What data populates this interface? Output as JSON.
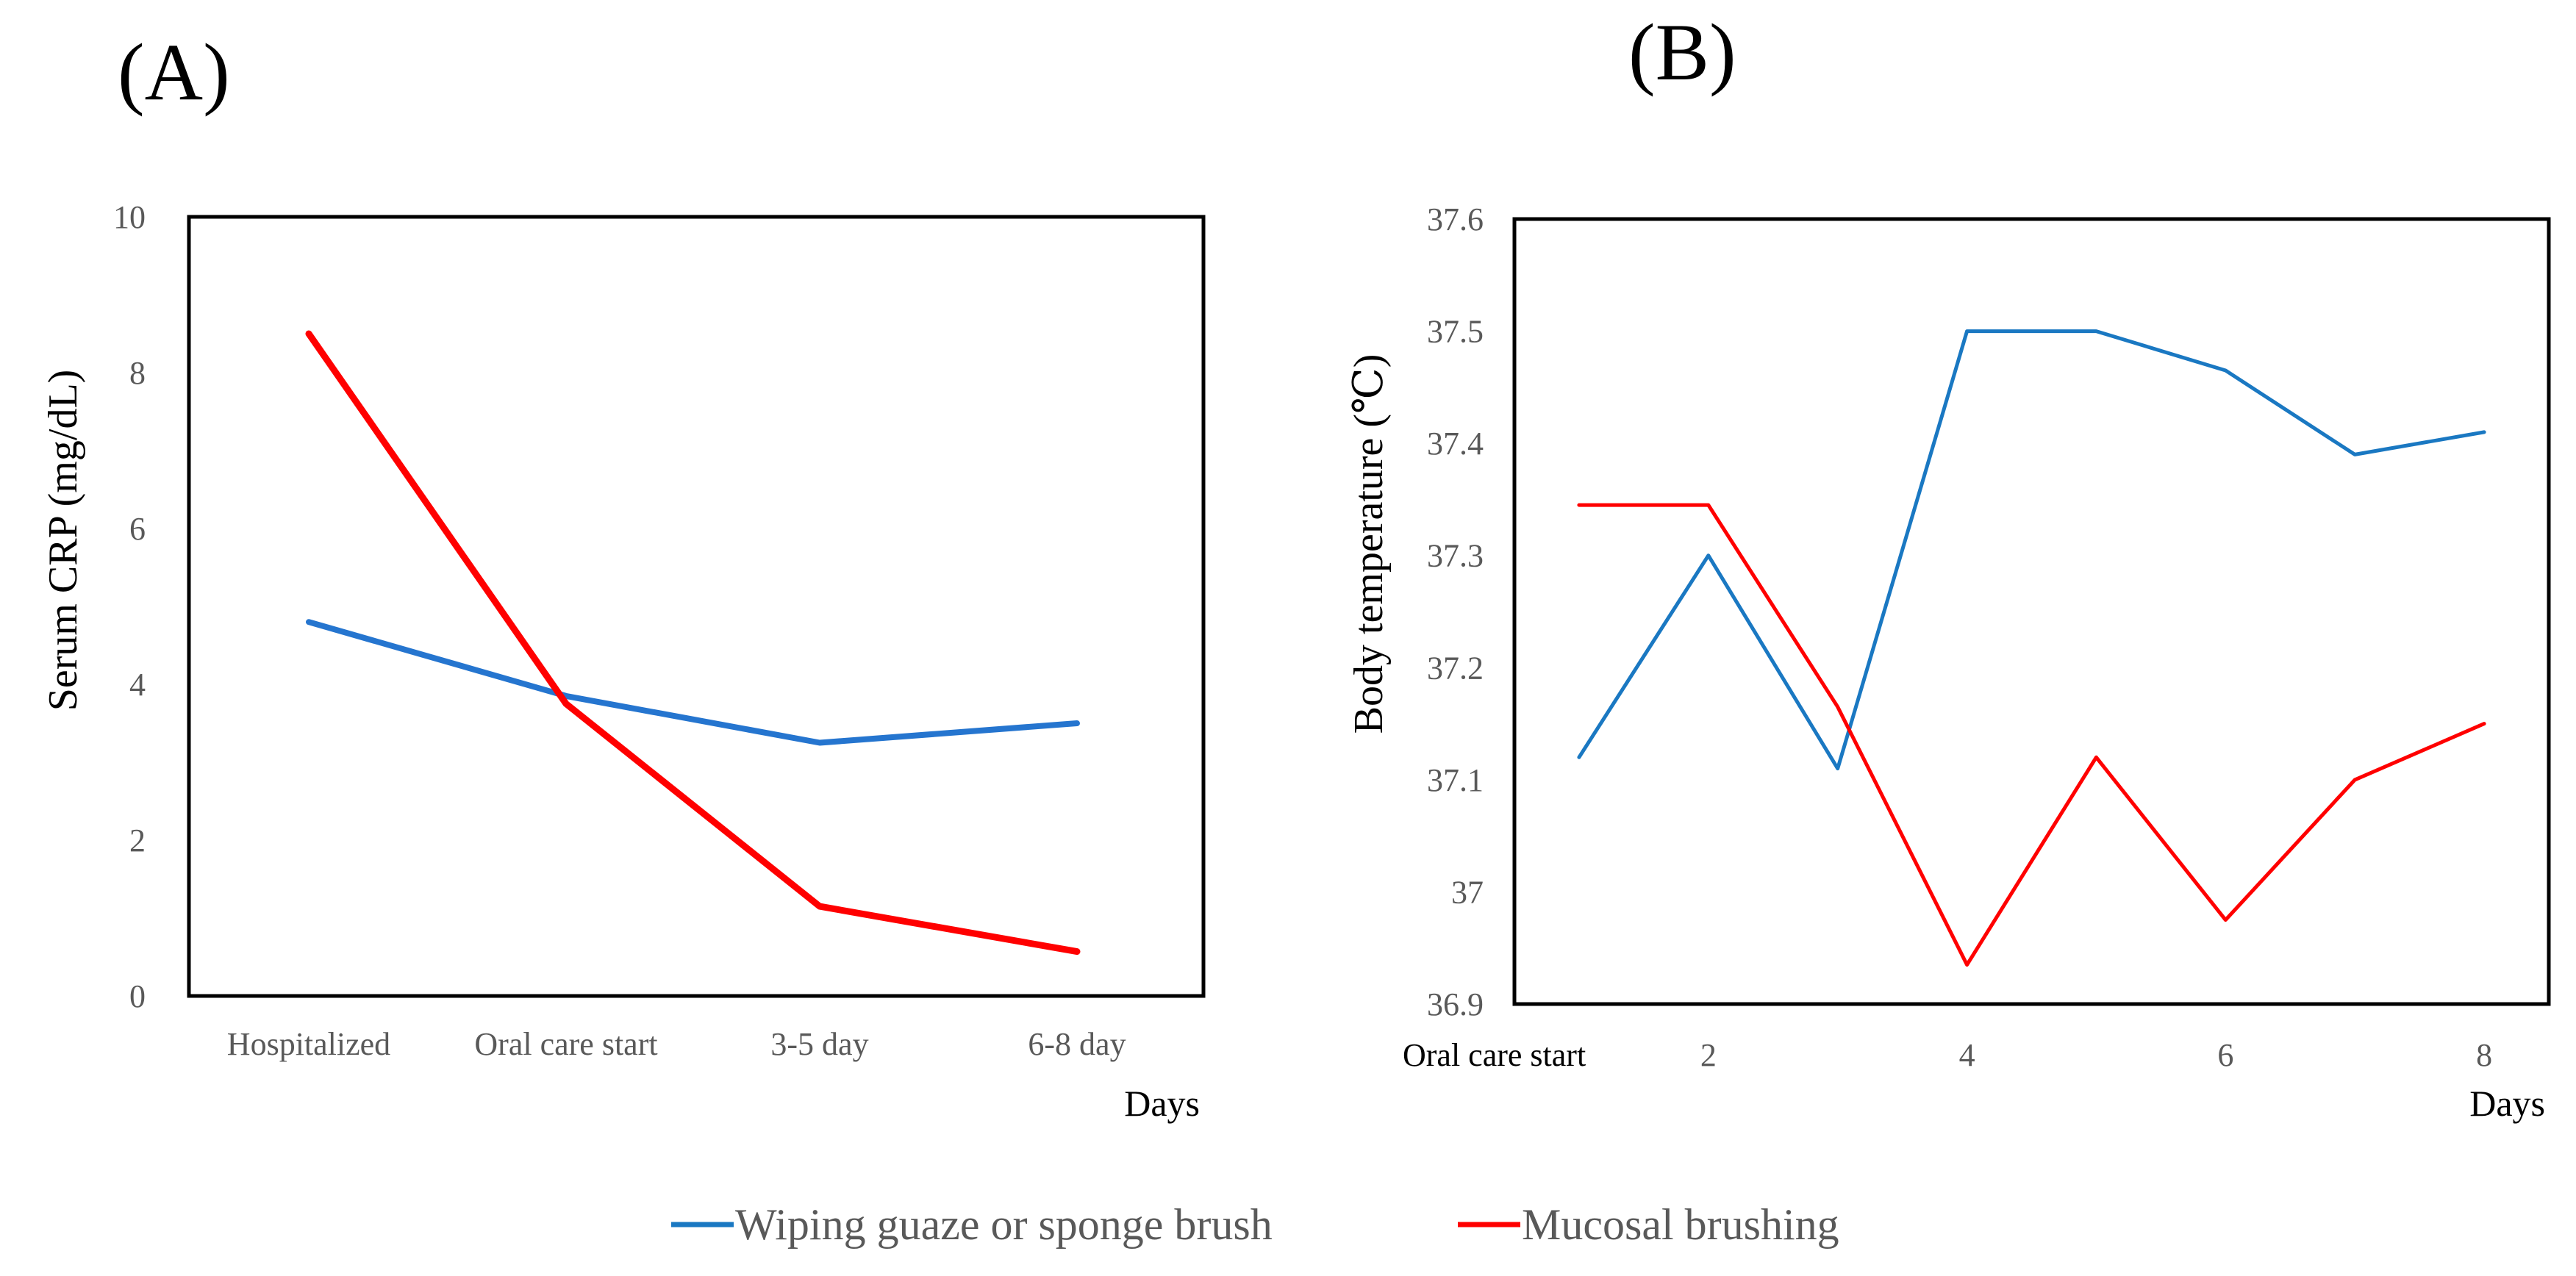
{
  "chart_data": [
    {
      "type": "line",
      "panel_label": "(A)",
      "title": "",
      "xlabel": "Days",
      "ylabel": "Serum CRP (mg/dL)",
      "ylim": [
        0,
        10
      ],
      "yticks": [
        0,
        2,
        4,
        6,
        8,
        10
      ],
      "ytick_labels": [
        "0",
        "2",
        "4",
        "6",
        "8",
        "10"
      ],
      "categories": [
        "Hospitalized",
        "Oral care start",
        "3-5 day",
        "6-8 day"
      ],
      "grid": false,
      "series": [
        {
          "name": "Wiping guaze or sponge brush",
          "color": "#2575cf",
          "values": [
            4.8,
            3.85,
            3.25,
            3.5
          ]
        },
        {
          "name": "Mucosal brushing",
          "color": "#ff0000",
          "values": [
            8.5,
            3.75,
            1.15,
            0.57
          ]
        }
      ]
    },
    {
      "type": "line",
      "panel_label": "(B)",
      "title": "",
      "xlabel": "Days",
      "ylabel": "Body temperature (℃)",
      "ylim": [
        36.9,
        37.6
      ],
      "yticks": [
        36.9,
        37.0,
        37.1,
        37.2,
        37.3,
        37.4,
        37.5,
        37.6
      ],
      "ytick_labels": [
        "36.9",
        "37",
        "37.1",
        "37.2",
        "37.3",
        "37.4",
        "37.5",
        "37.6"
      ],
      "x": [
        1,
        2,
        3,
        4,
        5,
        6,
        7,
        8
      ],
      "xlim": [
        0.5,
        8.5
      ],
      "x_tick_values": [
        1,
        2,
        4,
        6,
        8
      ],
      "x_tick_labels": [
        "Oral care start",
        "2",
        "4",
        "6",
        "8"
      ],
      "grid": false,
      "series": [
        {
          "name": "Wiping guaze or sponge brush",
          "color": "#1a78c2",
          "values": [
            37.12,
            37.3,
            37.11,
            37.5,
            37.5,
            37.465,
            37.39,
            37.41
          ]
        },
        {
          "name": "Mucosal brushing",
          "color": "#ff0000",
          "values": [
            37.345,
            37.345,
            37.165,
            36.935,
            37.12,
            36.975,
            37.1,
            37.15
          ]
        }
      ]
    }
  ],
  "legend": {
    "placement": "bottom-center",
    "items": [
      {
        "label": "Wiping guaze or sponge brush",
        "color": "#1a78c2"
      },
      {
        "label": "Mucosal brushing",
        "color": "#ff0000"
      }
    ]
  }
}
